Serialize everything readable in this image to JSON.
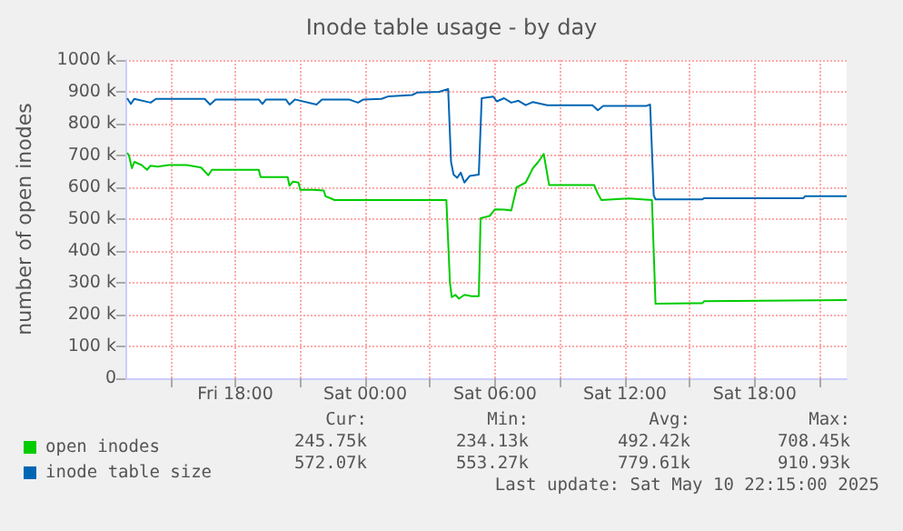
{
  "chart_data": {
    "type": "line",
    "title": "Inode table usage - by day",
    "ylabel": "number of open inodes",
    "xlim": [
      "2025-05-09T12:55",
      "2025-05-10T22:15"
    ],
    "xticks": [
      {
        "value": "2025-05-09T15:00",
        "label": null
      },
      {
        "value": "2025-05-09T18:00",
        "label": "Fri 18:00"
      },
      {
        "value": "2025-05-09T21:00",
        "label": null
      },
      {
        "value": "2025-05-10T00:00",
        "label": "Sat 00:00"
      },
      {
        "value": "2025-05-10T03:00",
        "label": null
      },
      {
        "value": "2025-05-10T06:00",
        "label": "Sat 06:00"
      },
      {
        "value": "2025-05-10T09:00",
        "label": null
      },
      {
        "value": "2025-05-10T12:00",
        "label": "Sat 12:00"
      },
      {
        "value": "2025-05-10T15:00",
        "label": null
      },
      {
        "value": "2025-05-10T18:00",
        "label": "Sat 18:00"
      },
      {
        "value": "2025-05-10T21:00",
        "label": null
      }
    ],
    "ylim": [
      0,
      1000000
    ],
    "yticks": [
      {
        "value": 0,
        "label": "0"
      },
      {
        "value": 100000,
        "label": "100 k"
      },
      {
        "value": 200000,
        "label": "200 k"
      },
      {
        "value": 300000,
        "label": "300 k"
      },
      {
        "value": 400000,
        "label": "400 k"
      },
      {
        "value": 500000,
        "label": "500 k"
      },
      {
        "value": 600000,
        "label": "600 k"
      },
      {
        "value": 700000,
        "label": "700 k"
      },
      {
        "value": 800000,
        "label": "800 k"
      },
      {
        "value": 900000,
        "label": "900 k"
      },
      {
        "value": 1000000,
        "label": "1000 k"
      }
    ],
    "grid": true,
    "legend": "bottom left",
    "marker": "none",
    "line_style": "solid",
    "series": [
      {
        "name": "open inodes",
        "color": "#00cc00",
        "x": [
          "2025-05-09T13:00",
          "2025-05-09T13:05",
          "2025-05-09T13:13",
          "2025-05-09T13:20",
          "2025-05-09T13:40",
          "2025-05-09T13:55",
          "2025-05-09T14:05",
          "2025-05-09T14:25",
          "2025-05-09T14:55",
          "2025-05-09T15:45",
          "2025-05-09T16:25",
          "2025-05-09T16:45",
          "2025-05-09T16:55",
          "2025-05-09T17:50",
          "2025-05-09T19:05",
          "2025-05-09T19:10",
          "2025-05-09T20:25",
          "2025-05-09T20:30",
          "2025-05-09T20:40",
          "2025-05-09T20:55",
          "2025-05-09T21:00",
          "2025-05-09T21:35",
          "2025-05-09T22:05",
          "2025-05-09T22:10",
          "2025-05-09T22:25",
          "2025-05-09T22:35",
          "2025-05-10T03:45",
          "2025-05-10T03:55",
          "2025-05-10T04:00",
          "2025-05-10T04:10",
          "2025-05-10T04:20",
          "2025-05-10T04:35",
          "2025-05-10T04:55",
          "2025-05-10T05:15",
          "2025-05-10T05:20",
          "2025-05-10T05:45",
          "2025-05-10T06:00",
          "2025-05-10T06:25",
          "2025-05-10T06:45",
          "2025-05-10T07:00",
          "2025-05-10T07:25",
          "2025-05-10T07:45",
          "2025-05-10T08:00",
          "2025-05-10T08:15",
          "2025-05-10T08:30",
          "2025-05-10T10:35",
          "2025-05-10T10:45",
          "2025-05-10T10:55",
          "2025-05-10T12:10",
          "2025-05-10T13:15",
          "2025-05-10T13:25",
          "2025-05-10T15:35",
          "2025-05-10T15:40",
          "2025-05-10T22:15"
        ],
        "values": [
          708000,
          700000,
          660000,
          680000,
          670000,
          655000,
          668000,
          665000,
          670000,
          670000,
          662000,
          638000,
          655000,
          655000,
          655000,
          632000,
          632000,
          605000,
          618000,
          615000,
          592000,
          592000,
          590000,
          572000,
          565000,
          560000,
          560000,
          300000,
          255000,
          262000,
          250000,
          262000,
          258000,
          258000,
          503000,
          510000,
          531000,
          530000,
          527000,
          600000,
          615000,
          660000,
          680000,
          705000,
          607000,
          607000,
          580000,
          560000,
          565000,
          560000,
          234000,
          236000,
          242000,
          246000
        ]
      },
      {
        "name": "inode table size",
        "color": "#0066b3",
        "x": [
          "2025-05-09T13:00",
          "2025-05-09T13:10",
          "2025-05-09T13:20",
          "2025-05-09T14:05",
          "2025-05-09T14:20",
          "2025-05-09T15:45",
          "2025-05-09T16:35",
          "2025-05-09T16:50",
          "2025-05-09T17:05",
          "2025-05-09T19:05",
          "2025-05-09T19:15",
          "2025-05-09T19:25",
          "2025-05-09T20:20",
          "2025-05-09T20:30",
          "2025-05-09T20:45",
          "2025-05-09T21:45",
          "2025-05-09T22:00",
          "2025-05-09T23:15",
          "2025-05-09T23:40",
          "2025-05-09T23:55",
          "2025-05-10T00:45",
          "2025-05-10T01:05",
          "2025-05-10T02:10",
          "2025-05-10T02:25",
          "2025-05-10T03:25",
          "2025-05-10T03:50",
          "2025-05-10T03:58",
          "2025-05-10T04:05",
          "2025-05-10T04:15",
          "2025-05-10T04:25",
          "2025-05-10T04:35",
          "2025-05-10T04:50",
          "2025-05-10T05:15",
          "2025-05-10T05:23",
          "2025-05-10T05:55",
          "2025-05-10T06:05",
          "2025-05-10T06:25",
          "2025-05-10T06:45",
          "2025-05-10T07:05",
          "2025-05-10T07:25",
          "2025-05-10T07:45",
          "2025-05-10T08:25",
          "2025-05-10T10:30",
          "2025-05-10T10:45",
          "2025-05-10T11:00",
          "2025-05-10T13:00",
          "2025-05-10T13:10",
          "2025-05-10T13:20",
          "2025-05-10T13:25",
          "2025-05-10T15:35",
          "2025-05-10T15:40",
          "2025-05-10T20:15",
          "2025-05-10T20:20",
          "2025-05-10T22:15"
        ],
        "values": [
          880000,
          862000,
          878000,
          866000,
          878000,
          878000,
          878000,
          860000,
          876000,
          876000,
          862000,
          876000,
          876000,
          860000,
          876000,
          860000,
          876000,
          876000,
          866000,
          876000,
          878000,
          886000,
          890000,
          898000,
          900000,
          909000,
          680000,
          640000,
          630000,
          646000,
          615000,
          636000,
          640000,
          880000,
          885000,
          870000,
          880000,
          866000,
          872000,
          858000,
          868000,
          858000,
          858000,
          842000,
          856000,
          856000,
          860000,
          575000,
          562000,
          562000,
          566000,
          566000,
          572000,
          572000
        ]
      }
    ],
    "annotations": [
      "Cur:",
      "Min:",
      "Avg:",
      "Max:",
      "245.75k",
      "234.13k",
      "492.42k",
      "708.45k",
      "572.07k",
      "553.27k",
      "779.61k",
      "910.93k",
      "Last update: Sat May 10 22:15:00 2025"
    ]
  }
}
